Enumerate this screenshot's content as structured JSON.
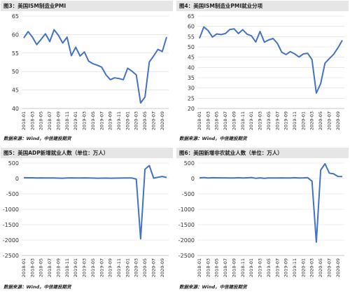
{
  "colors": {
    "series": "#4472c4",
    "caption_bg": "#e6e6e6",
    "grid": "#d9d9d9"
  },
  "x_labels": [
    "2018-01",
    "2018-03",
    "2018-05",
    "2018-07",
    "2018-09",
    "2018-11",
    "2019-01",
    "2019-03",
    "2019-05",
    "2019-07",
    "2019-09",
    "2019-11",
    "2020-01",
    "2020-03",
    "2020-05",
    "2020-07",
    "2020-09"
  ],
  "chart_data": [
    {
      "type": "line",
      "title": "图3：美国ISM制造业PMI",
      "source": "数据来源：Wind，中信建投期货",
      "xlabel": "",
      "ylabel": "",
      "ylim": [
        40,
        65
      ],
      "yticks": [
        40,
        45,
        50,
        55,
        60,
        65
      ],
      "grid": "horizontal",
      "series": [
        {
          "values": [
            59.1,
            60.8,
            59.3,
            57.3,
            58.7,
            60.2,
            58.1,
            61.3,
            59.8,
            57.7,
            59.3,
            54.3,
            56.6,
            54.2,
            55.3,
            52.8,
            52.1,
            51.7,
            51.2,
            49.1,
            47.8,
            48.3,
            48.1,
            47.8,
            50.9,
            50.1,
            49.1,
            41.5,
            43.1,
            52.6,
            54.2,
            56.0,
            55.4,
            59.3
          ]
        }
      ]
    },
    {
      "type": "line",
      "title": "图4：美国ISM制造业PMI就业分项",
      "source": "数据来源：Wind，中信建投期货",
      "xlabel": "",
      "ylabel": "",
      "ylim": [
        20,
        65
      ],
      "yticks": [
        20,
        25,
        30,
        35,
        40,
        45,
        50,
        55,
        60,
        65
      ],
      "grid": "horizontal",
      "series": [
        {
          "values": [
            54.2,
            59.7,
            57.9,
            54.8,
            56.3,
            56.0,
            56.5,
            58.5,
            58.8,
            56.5,
            58.4,
            56.2,
            55.4,
            52.4,
            57.5,
            52.3,
            53.4,
            54.1,
            51.7,
            47.4,
            46.3,
            47.7,
            46.6,
            45.1,
            46.6,
            46.9,
            43.8,
            27.5,
            32.1,
            42.1,
            44.3,
            46.4,
            49.6,
            53.2
          ]
        }
      ]
    },
    {
      "type": "line",
      "title": "图5：美国ADP新增就业人数（单位：万人）",
      "source": "数据来源：Wind，中信建投期货",
      "xlabel": "",
      "ylabel": "",
      "ylim": [
        -2500,
        500
      ],
      "yticks": [
        -2500,
        -2000,
        -1500,
        -1000,
        -500,
        0,
        500
      ],
      "grid": "horizontal",
      "series": [
        {
          "values": [
            24,
            23,
            22,
            18,
            20,
            19,
            18,
            17,
            12,
            10,
            15,
            21,
            18,
            16,
            20,
            15,
            14,
            10,
            12,
            13,
            10,
            12,
            14,
            18,
            16,
            15,
            -20,
            -1960,
            300,
            420,
            12,
            42,
            65,
            35
          ]
        }
      ]
    },
    {
      "type": "line",
      "title": "图6：美国新增非农就业人数（单位：万人）",
      "source": "数据来源：Wind，中信建投期货",
      "xlabel": "",
      "ylabel": "",
      "ylim": [
        -2500,
        500
      ],
      "yticks": [
        -2500,
        -2000,
        -1500,
        -1000,
        -500,
        0,
        500
      ],
      "grid": "horizontal",
      "series": [
        {
          "values": [
            18,
            32,
            15,
            26,
            23,
            20,
            21,
            19,
            18,
            25,
            16,
            22,
            31,
            6,
            21,
            7,
            18,
            17,
            16,
            20,
            18,
            15,
            25,
            18,
            21,
            27,
            -87,
            -2068,
            273,
            478,
            176,
            149,
            66,
            64
          ]
        }
      ]
    }
  ]
}
